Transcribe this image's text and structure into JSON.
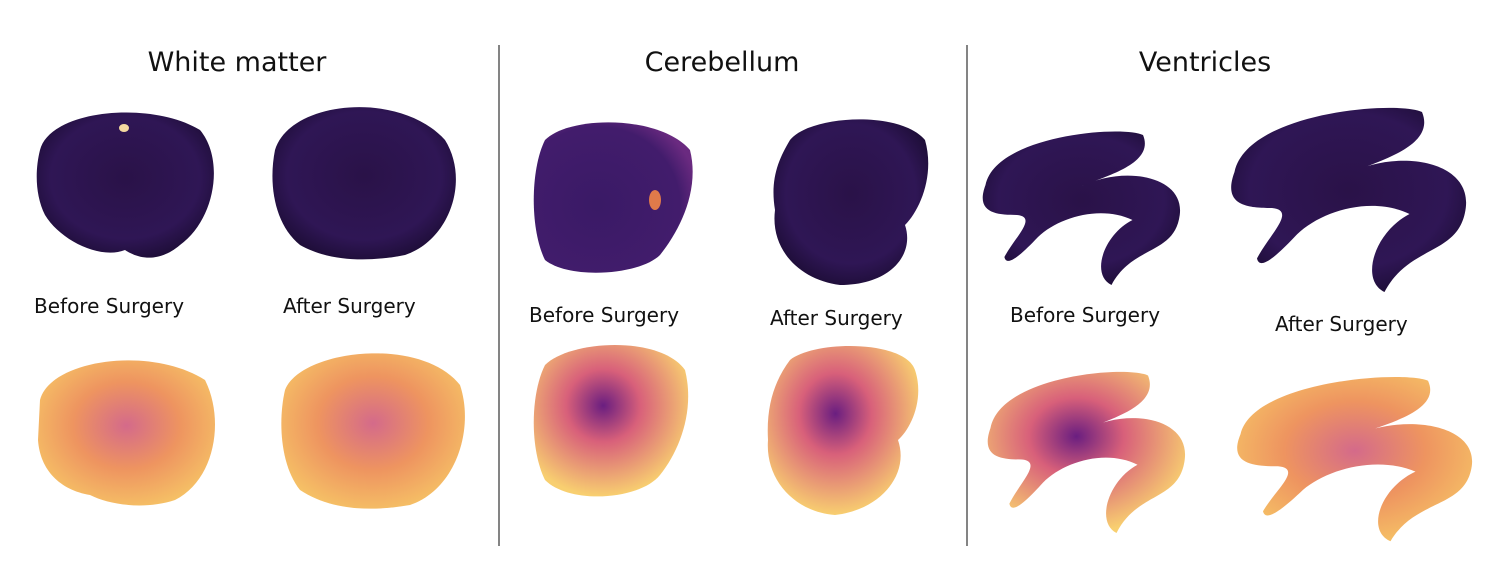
{
  "panels": [
    {
      "title": "White matter",
      "before": "Before Surgery",
      "after": "After Surgery"
    },
    {
      "title": "Cerebellum",
      "before": "Before Surgery",
      "after": "After Surgery"
    },
    {
      "title": "Ventricles",
      "before": "Before Surgery",
      "after": "After Surgery"
    }
  ]
}
